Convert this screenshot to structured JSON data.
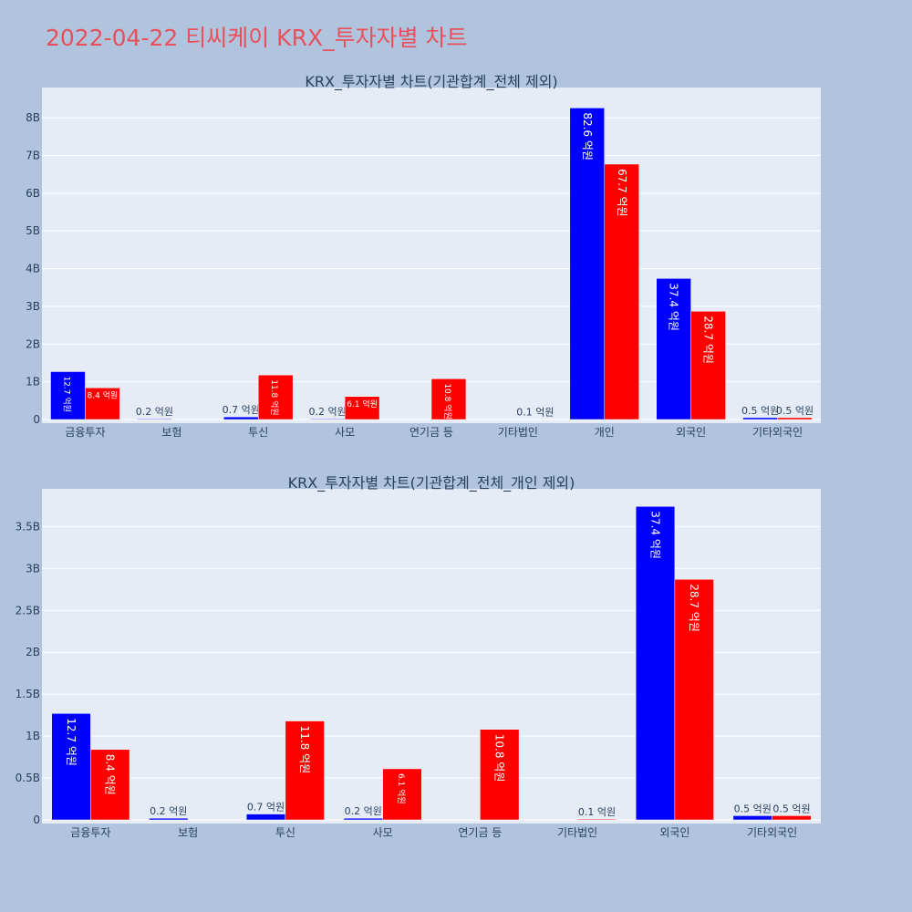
{
  "page": {
    "title": "2022-04-22 티씨케이 KRX_투자자별 차트"
  },
  "colors": {
    "background": "#b0c4de",
    "plot_bg": "#e5ecf6",
    "title": "#e8505b",
    "buy": "#0000ff",
    "sell": "#ff0000",
    "text": "#2a3f5f"
  },
  "chart_data": [
    {
      "type": "bar",
      "title": "KRX_투자자별 차트(기관합계_전체 제외)",
      "categories": [
        "금융투자",
        "보험",
        "투신",
        "사모",
        "연기금 등",
        "기타법인",
        "개인",
        "외국인",
        "기타외국인"
      ],
      "ylim": [
        0,
        8.8
      ],
      "yticks": [
        0,
        1,
        2,
        3,
        4,
        5,
        6,
        7,
        8
      ],
      "ytick_labels": [
        "0",
        "1B",
        "2B",
        "3B",
        "4B",
        "5B",
        "6B",
        "7B",
        "8B"
      ],
      "grid": true,
      "series": [
        {
          "color": "#0000ff",
          "values": [
            1.27,
            0.02,
            0.07,
            0.02,
            0,
            0,
            8.26,
            3.74,
            0.05
          ],
          "labels": [
            "12.7 억원",
            "0.2 억원",
            "0.7 억원",
            "0.2 억원",
            "",
            "",
            "82.6 억원",
            "37.4 억원",
            "0.5 억원"
          ]
        },
        {
          "color": "#ff0000",
          "values": [
            0.84,
            0,
            1.18,
            0.61,
            1.08,
            0.01,
            6.77,
            2.87,
            0.05
          ],
          "labels": [
            "8.4 억원",
            "",
            "11.8 억원",
            "6.1 억원",
            "10.8 억원",
            "0.1 억원",
            "67.7 억원",
            "28.7 억원",
            "0.5 억원"
          ]
        }
      ]
    },
    {
      "type": "bar",
      "title": "KRX_투자자별 차트(기관합계_전체_개인 제외)",
      "categories": [
        "금융투자",
        "보험",
        "투신",
        "사모",
        "연기금 등",
        "기타법인",
        "외국인",
        "기타외국인"
      ],
      "ylim": [
        0,
        3.95
      ],
      "yticks": [
        0,
        0.5,
        1,
        1.5,
        2,
        2.5,
        3,
        3.5
      ],
      "ytick_labels": [
        "0",
        "0.5B",
        "1B",
        "1.5B",
        "2B",
        "2.5B",
        "3B",
        "3.5B"
      ],
      "grid": true,
      "series": [
        {
          "color": "#0000ff",
          "values": [
            1.27,
            0.02,
            0.07,
            0.02,
            0,
            0,
            3.74,
            0.05
          ],
          "labels": [
            "12.7 억원",
            "0.2 억원",
            "0.7 억원",
            "0.2 억원",
            "",
            "",
            "37.4 억원",
            "0.5 억원"
          ]
        },
        {
          "color": "#ff0000",
          "values": [
            0.84,
            0,
            1.18,
            0.61,
            1.08,
            0.01,
            2.87,
            0.05
          ],
          "labels": [
            "8.4 억원",
            "",
            "11.8 억원",
            "6.1 억원",
            "10.8 억원",
            "0.1 억원",
            "28.7 억원",
            "0.5 억원"
          ]
        }
      ]
    }
  ]
}
